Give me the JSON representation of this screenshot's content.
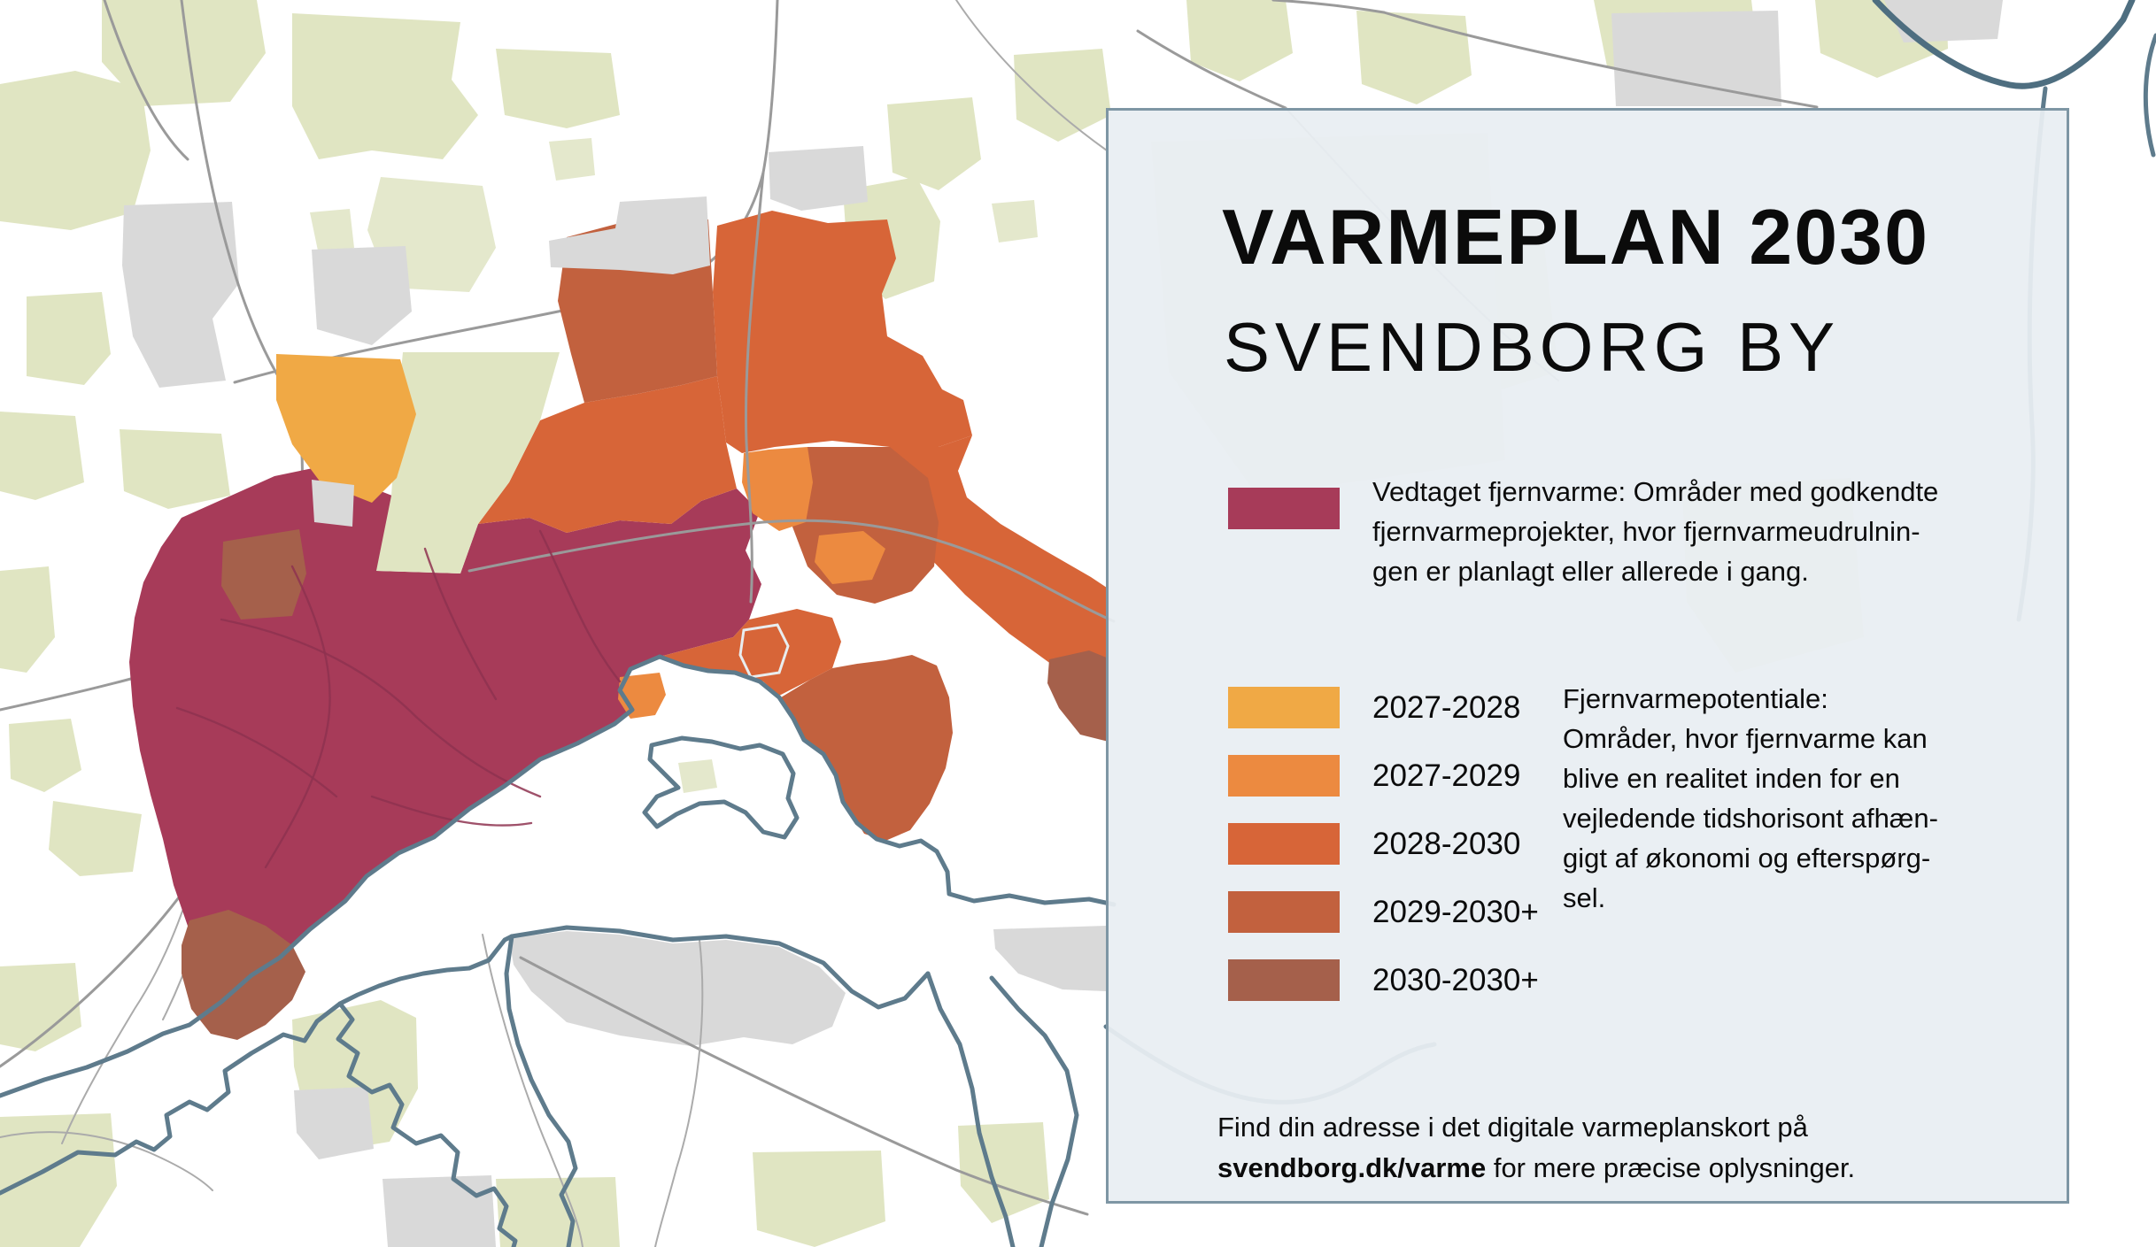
{
  "panel": {
    "title": "VARMEPLAN 2030",
    "subtitle": "SVENDBORG BY",
    "adopted": {
      "color": "#A73B59",
      "lines": [
        "Vedtaget fjernvarme: Områder med godkendte",
        "fjernvarmeprojekter, hvor fjernvarmeudrulnin-",
        "gen er planlagt eller allerede i gang."
      ]
    },
    "potential": {
      "items": [
        {
          "label": "2027-2028",
          "color": "#F0A945"
        },
        {
          "label": "2027-2029",
          "color": "#EC8A40"
        },
        {
          "label": "2028-2030",
          "color": "#D76538"
        },
        {
          "label": "2029-2030+",
          "color": "#C2613E"
        },
        {
          "label": "2030-2030+",
          "color": "#A5604B"
        }
      ],
      "note_lines": [
        "Fjernvarmepotentiale:",
        "Områder, hvor fjernvarme kan",
        "blive en realitet inden for en",
        "vejledende tidshorisont afhæn-",
        "gigt af økonomi og efterspørg-",
        "sel."
      ]
    },
    "footer": {
      "line1": "Find din adresse i det digitale varmeplanskort på",
      "link_bold": "svendborg.dk/varme",
      "line2_rest": " for mere præcise oplysninger."
    }
  },
  "map": {
    "colors": {
      "vedtaget_fjernvarme": "#A73B59",
      "potentiale_2027_2028": "#F0A945",
      "potentiale_2027_2029": "#EC8A40",
      "potentiale_2028_2030": "#D76538",
      "potentiale_2029_2030plus": "#C2613E",
      "potentiale_2030_2030plus": "#A5604B",
      "land": "#FFFFFF",
      "fields_green": "#E0E5C2",
      "urban_gray": "#D9D9D9",
      "roads": "#9A9A9A",
      "coastline": "#5E7B8C",
      "panel_background": "#E9EEF2",
      "panel_border": "#7E96A4"
    }
  }
}
